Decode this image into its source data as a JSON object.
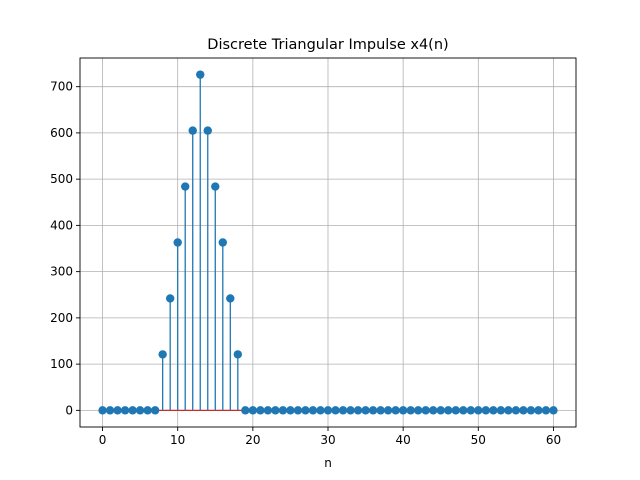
{
  "chart_data": {
    "type": "stem",
    "title": "Discrete Triangular Impulse x4(n)",
    "xlabel": "n",
    "ylabel": "",
    "xlim": [
      -3,
      63
    ],
    "ylim": [
      -36,
      762
    ],
    "xticks": [
      0,
      10,
      20,
      30,
      40,
      50,
      60
    ],
    "yticks": [
      0,
      100,
      200,
      300,
      400,
      500,
      600,
      700
    ],
    "grid": true,
    "colors": {
      "stem": "#1f77b4",
      "baseline": "#d62728",
      "grid": "#b0b0b0"
    },
    "series": [
      {
        "x": [
          0,
          1,
          2,
          3,
          4,
          5,
          6,
          7,
          8,
          9,
          10,
          11,
          12,
          13,
          14,
          15,
          16,
          17,
          18,
          19,
          20,
          21,
          22,
          23,
          24,
          25,
          26,
          27,
          28,
          29,
          30,
          31,
          32,
          33,
          34,
          35,
          36,
          37,
          38,
          39,
          40,
          41,
          42,
          43,
          44,
          45,
          46,
          47,
          48,
          49,
          50,
          51,
          52,
          53,
          54,
          55,
          56,
          57,
          58,
          59,
          60
        ],
        "values": [
          0,
          0,
          0,
          0,
          0,
          0,
          0,
          0,
          121,
          242,
          363,
          484,
          605,
          726,
          605,
          484,
          363,
          242,
          121,
          0,
          0,
          0,
          0,
          0,
          0,
          0,
          0,
          0,
          0,
          0,
          0,
          0,
          0,
          0,
          0,
          0,
          0,
          0,
          0,
          0,
          0,
          0,
          0,
          0,
          0,
          0,
          0,
          0,
          0,
          0,
          0,
          0,
          0,
          0,
          0,
          0,
          0,
          0,
          0,
          0,
          0
        ]
      }
    ]
  }
}
